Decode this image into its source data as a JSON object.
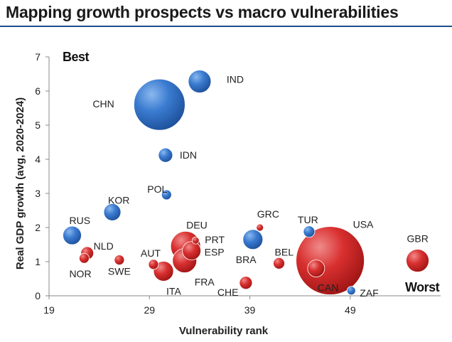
{
  "header": {
    "title": "Mapping growth prospects vs macro vulnerabilities"
  },
  "chart_data": {
    "type": "bubble",
    "title": "Mapping growth prospects vs macro vulnerabilities",
    "xlabel": "Vulnerability rank",
    "ylabel": "Real GDP growth (avg, 2020-2024)",
    "xlim": [
      19,
      58
    ],
    "ylim": [
      0,
      7
    ],
    "x_ticks": [
      19,
      29,
      39,
      49
    ],
    "y_ticks": [
      0,
      1,
      2,
      3,
      4,
      5,
      6,
      7
    ],
    "annotations": {
      "best": "Best",
      "worst": "Worst"
    },
    "colors": {
      "blue": "#2f6fc0",
      "red": "#d42a2a",
      "axis": "#888888"
    },
    "points": [
      {
        "label": "CHN",
        "x": 30.0,
        "y": 5.6,
        "size": 36,
        "color": "blue"
      },
      {
        "label": "IND",
        "x": 34.0,
        "y": 6.28,
        "size": 16,
        "color": "blue"
      },
      {
        "label": "IDN",
        "x": 30.6,
        "y": 4.12,
        "size": 10,
        "color": "blue"
      },
      {
        "label": "POL",
        "x": 30.7,
        "y": 2.96,
        "size": 7,
        "color": "blue"
      },
      {
        "label": "KOR",
        "x": 25.3,
        "y": 2.45,
        "size": 12,
        "color": "blue"
      },
      {
        "label": "RUS",
        "x": 21.3,
        "y": 1.77,
        "size": 13,
        "color": "blue"
      },
      {
        "label": "BRA",
        "x": 39.3,
        "y": 1.65,
        "size": 14,
        "color": "blue"
      },
      {
        "label": "TUR",
        "x": 44.9,
        "y": 1.88,
        "size": 8,
        "color": "blue"
      },
      {
        "label": "ZAF",
        "x": 49.1,
        "y": 0.15,
        "size": 6,
        "color": "blue"
      },
      {
        "label": "NLD",
        "x": 22.8,
        "y": 1.25,
        "size": 9,
        "color": "red"
      },
      {
        "label": "NOR",
        "x": 22.5,
        "y": 1.1,
        "size": 7,
        "color": "red"
      },
      {
        "label": "SWE",
        "x": 26.0,
        "y": 1.05,
        "size": 7,
        "color": "red"
      },
      {
        "label": "AUT",
        "x": 29.4,
        "y": 0.92,
        "size": 7,
        "color": "red"
      },
      {
        "label": "ITA",
        "x": 30.4,
        "y": 0.72,
        "size": 14,
        "color": "red"
      },
      {
        "label": "DEU",
        "x": 32.6,
        "y": 1.45,
        "size": 21,
        "color": "red"
      },
      {
        "label": "PRT",
        "x": 33.6,
        "y": 1.62,
        "size": 5,
        "color": "red"
      },
      {
        "label": "ESP",
        "x": 33.2,
        "y": 1.32,
        "size": 13,
        "color": "red"
      },
      {
        "label": "FRA",
        "x": 32.5,
        "y": 1.03,
        "size": 17,
        "color": "red"
      },
      {
        "label": "CHE",
        "x": 38.6,
        "y": 0.38,
        "size": 9,
        "color": "red"
      },
      {
        "label": "GRC",
        "x": 40.0,
        "y": 2.0,
        "size": 5,
        "color": "red"
      },
      {
        "label": "BEL",
        "x": 41.9,
        "y": 0.95,
        "size": 8,
        "color": "red"
      },
      {
        "label": "USA",
        "x": 47.0,
        "y": 1.03,
        "size": 48,
        "color": "red"
      },
      {
        "label": "CAN",
        "x": 45.6,
        "y": 0.8,
        "size": 12,
        "color": "red"
      },
      {
        "label": "GBR",
        "x": 55.7,
        "y": 1.03,
        "size": 16,
        "color": "red"
      }
    ]
  }
}
